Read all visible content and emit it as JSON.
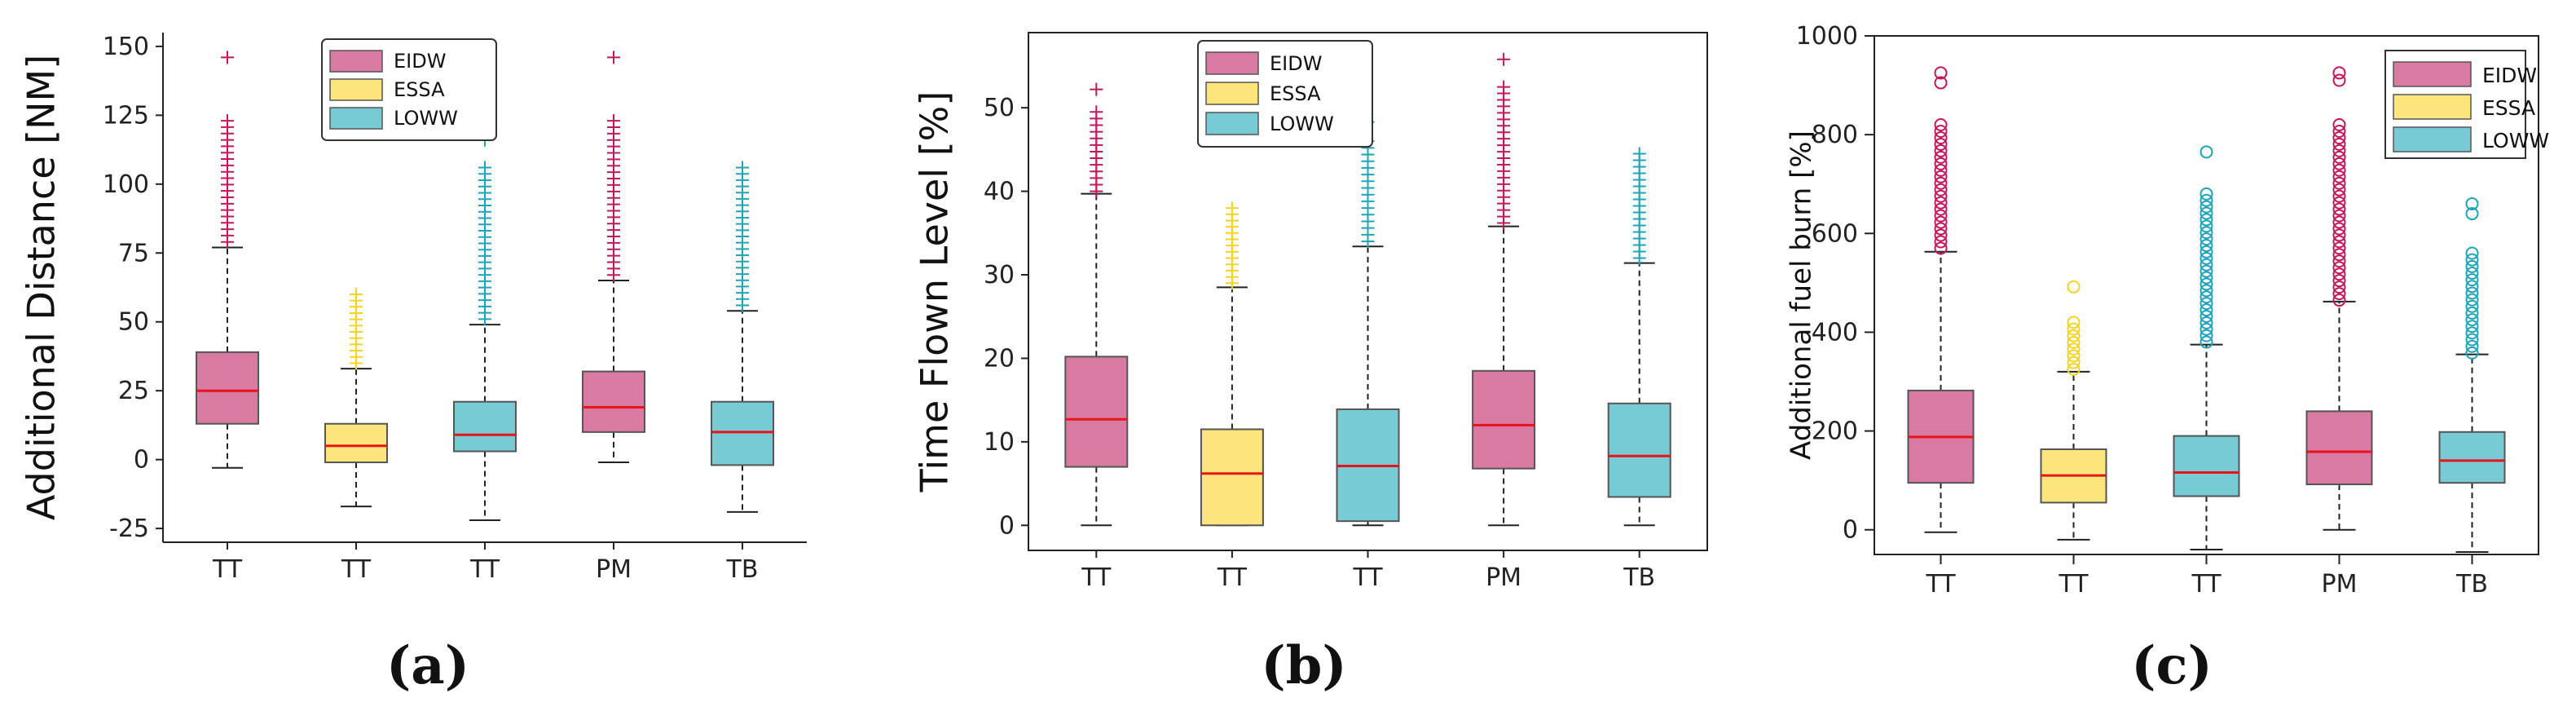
{
  "colors": {
    "EIDW": {
      "fill": "#d97aa2",
      "outlier": "#c2185b"
    },
    "ESSA": {
      "fill": "#fce57b",
      "outlier": "#f7d320"
    },
    "LOWW": {
      "fill": "#78cbd5",
      "outlier": "#1ea3bb"
    },
    "median": "#e8131b"
  },
  "chart_data": [
    {
      "type": "box",
      "panel_label": "a",
      "ylabel": "Additional Distance [NM]",
      "xlabel": "",
      "ylim": [
        -30,
        155
      ],
      "yticks": [
        -25,
        0,
        25,
        50,
        75,
        100,
        125,
        150
      ],
      "categories": [
        "TT",
        "TT",
        "TT",
        "PM",
        "TB"
      ],
      "legend": {
        "position": "top-center",
        "entries": [
          "EIDW",
          "ESSA",
          "LOWW"
        ]
      },
      "outlier_marker": "+",
      "grid": false,
      "boxes": [
        {
          "series": "EIDW",
          "whisker_low": -3,
          "q1": 13,
          "median": 25,
          "q3": 39,
          "whisker_high": 77,
          "outliers_from": 79,
          "outliers_to": 123,
          "outliers_extra": [
            146
          ]
        },
        {
          "series": "ESSA",
          "whisker_low": -17,
          "q1": -1,
          "median": 5,
          "q3": 13,
          "whisker_high": 33,
          "outliers_from": 35,
          "outliers_to": 60,
          "outliers_extra": []
        },
        {
          "series": "LOWW",
          "whisker_low": -22,
          "q1": 3,
          "median": 9,
          "q3": 21,
          "whisker_high": 49,
          "outliers_from": 51,
          "outliers_to": 106,
          "outliers_extra": [
            116
          ]
        },
        {
          "series": "EIDW",
          "whisker_low": -1,
          "q1": 10,
          "median": 19,
          "q3": 32,
          "whisker_high": 65,
          "outliers_from": 67,
          "outliers_to": 123,
          "outliers_extra": [
            146
          ]
        },
        {
          "series": "LOWW",
          "whisker_low": -19,
          "q1": -2,
          "median": 10,
          "q3": 21,
          "whisker_high": 54,
          "outliers_from": 56,
          "outliers_to": 106,
          "outliers_extra": []
        }
      ]
    },
    {
      "type": "box",
      "panel_label": "b",
      "ylabel": "Time Flown Level [%]",
      "xlabel": "",
      "ylim": [
        -3,
        59
      ],
      "yticks": [
        0,
        10,
        20,
        30,
        40,
        50
      ],
      "categories": [
        "TT",
        "TT",
        "TT",
        "PM",
        "TB"
      ],
      "legend": {
        "position": "top-center",
        "entries": [
          "EIDW",
          "ESSA",
          "LOWW"
        ]
      },
      "outlier_marker": "+",
      "grid": false,
      "boxes": [
        {
          "series": "EIDW",
          "whisker_low": 0,
          "q1": 7,
          "median": 12.7,
          "q3": 20.2,
          "whisker_high": 39.7,
          "outliers_from": 40,
          "outliers_to": 49.5,
          "outliers_extra": [
            52.2
          ]
        },
        {
          "series": "ESSA",
          "whisker_low": 0,
          "q1": 0,
          "median": 6.2,
          "q3": 11.5,
          "whisker_high": 28.5,
          "outliers_from": 29,
          "outliers_to": 38,
          "outliers_extra": []
        },
        {
          "series": "LOWW",
          "whisker_low": 0,
          "q1": 0.5,
          "median": 7.1,
          "q3": 13.9,
          "whisker_high": 33.4,
          "outliers_from": 34,
          "outliers_to": 46,
          "outliers_extra": [
            48.3
          ]
        },
        {
          "series": "EIDW",
          "whisker_low": 0,
          "q1": 6.8,
          "median": 12,
          "q3": 18.5,
          "whisker_high": 35.8,
          "outliers_from": 36.2,
          "outliers_to": 52.5,
          "outliers_extra": [
            55.8
          ]
        },
        {
          "series": "LOWW",
          "whisker_low": 0,
          "q1": 3.4,
          "median": 8.3,
          "q3": 14.6,
          "whisker_high": 31.4,
          "outliers_from": 32,
          "outliers_to": 44.5,
          "outliers_extra": []
        }
      ]
    },
    {
      "type": "box",
      "panel_label": "c",
      "ylabel": "Additional fuel burn [%]",
      "xlabel": "",
      "ylim": [
        -50,
        1000
      ],
      "yticks": [
        0,
        200,
        400,
        600,
        800,
        1000
      ],
      "categories": [
        "TT",
        "TT",
        "TT",
        "PM",
        "TB"
      ],
      "legend": {
        "position": "top-right",
        "entries": [
          "EIDW",
          "ESSA",
          "LOWW"
        ]
      },
      "outlier_marker": "o",
      "grid": false,
      "boxes": [
        {
          "series": "EIDW",
          "whisker_low": -5,
          "q1": 95,
          "median": 188,
          "q3": 282,
          "whisker_high": 563,
          "outliers_from": 570,
          "outliers_to": 820,
          "outliers_extra": [
            905,
            925
          ]
        },
        {
          "series": "ESSA",
          "whisker_low": -20,
          "q1": 55,
          "median": 110,
          "q3": 163,
          "whisker_high": 320,
          "outliers_from": 325,
          "outliers_to": 420,
          "outliers_extra": [
            492
          ]
        },
        {
          "series": "LOWW",
          "whisker_low": -40,
          "q1": 68,
          "median": 116,
          "q3": 190,
          "whisker_high": 375,
          "outliers_from": 380,
          "outliers_to": 680,
          "outliers_extra": [
            765
          ]
        },
        {
          "series": "EIDW",
          "whisker_low": 0,
          "q1": 92,
          "median": 158,
          "q3": 240,
          "whisker_high": 462,
          "outliers_from": 465,
          "outliers_to": 820,
          "outliers_extra": [
            910,
            925
          ]
        },
        {
          "series": "LOWW",
          "whisker_low": -45,
          "q1": 95,
          "median": 140,
          "q3": 198,
          "whisker_high": 355,
          "outliers_from": 358,
          "outliers_to": 560,
          "outliers_extra": [
            640,
            660
          ]
        }
      ]
    }
  ],
  "panel_letters": [
    "(a)",
    "(b)",
    "(c)"
  ]
}
